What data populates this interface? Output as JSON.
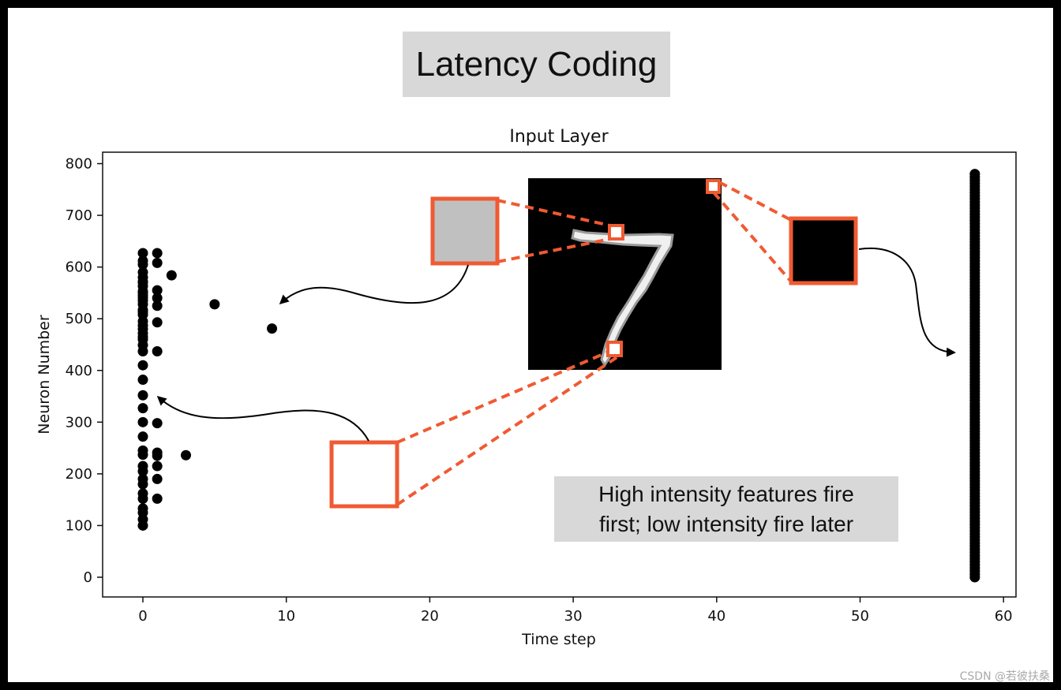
{
  "banner": {
    "title": "Latency Coding"
  },
  "annotation": {
    "line1": "High intensity features fire",
    "line2": "first; low intensity fire later"
  },
  "watermark": "CSDN @若彼扶桑",
  "icon": "mnist-digit-seven",
  "colors": {
    "highlight": "#f05a32",
    "gray_patch": "#c0c0c0",
    "dark_patch": "#000000",
    "white_patch": "#ffffff"
  },
  "chart_data": {
    "type": "scatter",
    "title": "Input Layer",
    "xlabel": "Time step",
    "ylabel": "Neuron Number",
    "xlim": [
      -3,
      61
    ],
    "ylim": [
      -38,
      820
    ],
    "xticks": [
      0,
      10,
      20,
      30,
      40,
      50,
      60
    ],
    "yticks": [
      0,
      100,
      200,
      300,
      400,
      500,
      600,
      700,
      800
    ],
    "grid": false,
    "series": [
      {
        "x": [
          0,
          0,
          0,
          0,
          0,
          0,
          0,
          0,
          0,
          0,
          0,
          0,
          0,
          0,
          0,
          0,
          0,
          0,
          0,
          0,
          0,
          0,
          0,
          0,
          0,
          0,
          0,
          0,
          0,
          0,
          0,
          0,
          0,
          0,
          0,
          0,
          0,
          0,
          0,
          0,
          0,
          0,
          0,
          1,
          1,
          1,
          1,
          1,
          1,
          1,
          1,
          1,
          1,
          1,
          1,
          1,
          2,
          3,
          5,
          9
        ],
        "y": [
          100,
          112,
          125,
          133,
          152,
          162,
          180,
          190,
          205,
          215,
          237,
          245,
          272,
          300,
          327,
          352,
          382,
          410,
          437,
          460,
          472,
          487,
          495,
          508,
          513,
          528,
          535,
          545,
          553,
          563,
          570,
          580,
          590,
          605,
          612,
          627,
          480,
          465,
          449,
          540,
          572,
          550,
          517,
          152,
          190,
          235,
          241,
          298,
          437,
          493,
          525,
          540,
          555,
          608,
          627,
          215,
          584,
          236,
          528,
          481
        ]
      },
      {
        "x": [
          58
        ],
        "y_range": [
          0,
          784
        ]
      }
    ]
  }
}
